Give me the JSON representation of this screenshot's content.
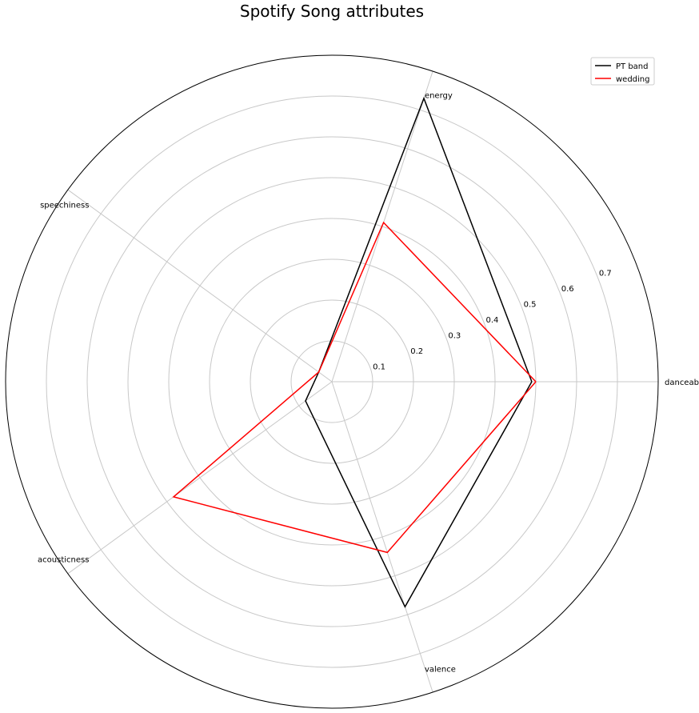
{
  "chart_data": {
    "type": "radar",
    "title": "Spotify Song attributes",
    "axes": [
      "danceability",
      "energy",
      "speechiness",
      "acousticness",
      "valence"
    ],
    "radial_ticks": [
      0.1,
      0.2,
      0.3,
      0.4,
      0.5,
      0.6,
      0.7
    ],
    "rlim": [
      0,
      0.8
    ],
    "grid": true,
    "legend": "top-right",
    "series": [
      {
        "name": "PT band",
        "color": "#000000",
        "values": [
          0.49,
          0.73,
          0.04,
          0.08,
          0.58
        ]
      },
      {
        "name": "wedding",
        "color": "#ff0000",
        "values": [
          0.5,
          0.41,
          0.04,
          0.48,
          0.44
        ]
      }
    ]
  }
}
